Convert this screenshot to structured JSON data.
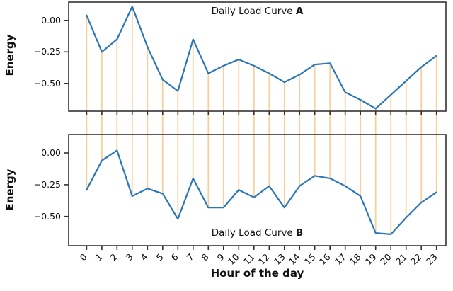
{
  "figure": {
    "xlabel": "Hour of the day",
    "xticklabels": [
      "0",
      "1",
      "2",
      "3",
      "4",
      "5",
      "6",
      "7",
      "8",
      "9",
      "10",
      "11",
      "12",
      "13",
      "14",
      "15",
      "16",
      "17",
      "18",
      "19",
      "20",
      "21",
      "22",
      "23"
    ],
    "line_color": "#2b77b8",
    "vline_color": "#f9d09c",
    "frame_color": "#333333",
    "text_color": "#111111",
    "background": "#ffffff"
  },
  "chart_data": [
    {
      "type": "line",
      "title_prefix": "Daily Load Curve ",
      "title_bold": "A",
      "ylabel": "Energy",
      "x": [
        0,
        1,
        2,
        3,
        4,
        5,
        6,
        7,
        8,
        9,
        10,
        11,
        12,
        13,
        14,
        15,
        16,
        17,
        18,
        19,
        20,
        21,
        22,
        23
      ],
      "values": [
        0.04,
        -0.25,
        -0.15,
        0.11,
        -0.21,
        -0.47,
        -0.56,
        -0.15,
        -0.42,
        -0.36,
        -0.31,
        -0.36,
        -0.42,
        -0.49,
        -0.43,
        -0.35,
        -0.34,
        -0.57,
        -0.63,
        -0.7,
        -0.59,
        -0.48,
        -0.37,
        -0.28
      ],
      "yticks": [
        {
          "label": "0.00",
          "value": 0
        },
        {
          "label": "−0.25",
          "value": -0.25
        },
        {
          "label": "−0.50",
          "value": -0.5
        }
      ],
      "ylim": [
        -0.72,
        0.145
      ],
      "xlim": [
        -1.18,
        23.62
      ],
      "grid": false,
      "legend": null,
      "vlines_at_each_hour": true
    },
    {
      "type": "line",
      "title_prefix": "Daily Load Curve ",
      "title_bold": "B",
      "ylabel": "Energy",
      "x": [
        0,
        1,
        2,
        3,
        4,
        5,
        6,
        7,
        8,
        9,
        10,
        11,
        12,
        13,
        14,
        15,
        16,
        17,
        18,
        19,
        20,
        21,
        22,
        23
      ],
      "values": [
        -0.29,
        -0.06,
        0.02,
        -0.34,
        -0.28,
        -0.32,
        -0.52,
        -0.2,
        -0.43,
        -0.43,
        -0.29,
        -0.35,
        -0.26,
        -0.43,
        -0.26,
        -0.18,
        -0.2,
        -0.26,
        -0.34,
        -0.63,
        -0.64,
        -0.51,
        -0.39,
        -0.31
      ],
      "yticks": [
        {
          "label": "0.00",
          "value": 0
        },
        {
          "label": "−0.25",
          "value": -0.25
        },
        {
          "label": "−0.50",
          "value": -0.5
        }
      ],
      "ylim": [
        -0.73,
        0.145
      ],
      "xlim": [
        -1.18,
        23.62
      ],
      "grid": false,
      "legend": null,
      "vlines_at_each_hour": true
    }
  ]
}
